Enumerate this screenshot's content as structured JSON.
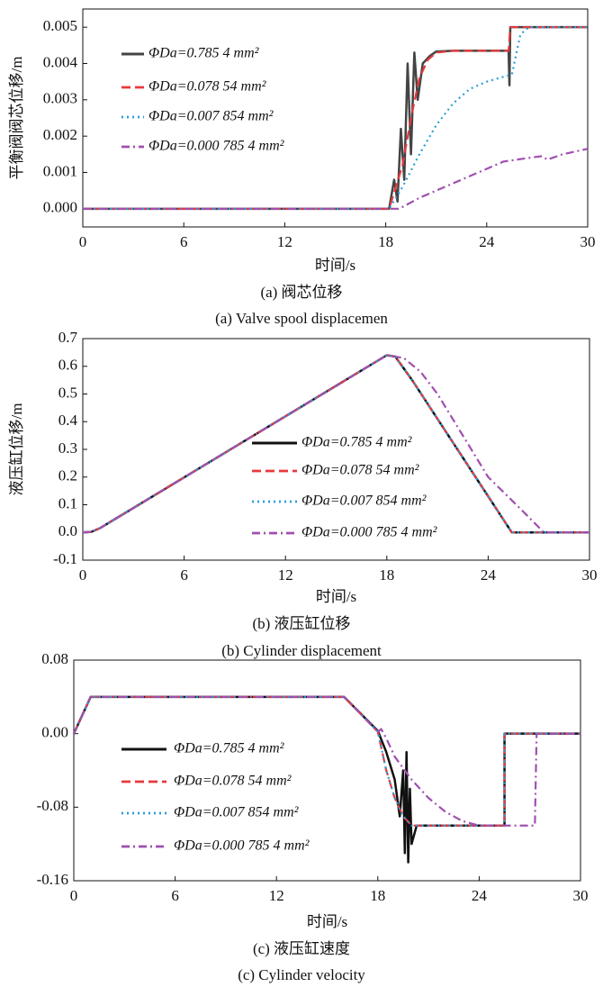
{
  "chart_data": [
    {
      "type": "line",
      "ylabel": "平衡阀阀芯位移/m",
      "xlabel": "时间/s",
      "caption_cn": "(a)  阀芯位移",
      "caption_en": "(a)  Valve spool displacemen",
      "xlim": [
        0,
        30
      ],
      "ylim": [
        -0.0005,
        0.0055
      ],
      "xticks": [
        0,
        6,
        12,
        18,
        24,
        30
      ],
      "yticks": [
        {
          "value": 0,
          "label": "0.000"
        },
        0.001,
        0.002,
        0.003,
        0.004,
        0.005
      ],
      "series": [
        {
          "name": "ΦDa=0.785 4 mm²",
          "color": "#444444",
          "style": "solid",
          "x": [
            0,
            18.2,
            18.5,
            18.7,
            18.9,
            19.1,
            19.3,
            19.5,
            19.7,
            19.9,
            20.2,
            20.6,
            21,
            22,
            25.3,
            25.35,
            25.4,
            25.45,
            30
          ],
          "values": [
            0,
            0,
            0.0008,
            0.0002,
            0.0022,
            0.0008,
            0.004,
            0.0015,
            0.0043,
            0.003,
            0.004,
            0.0042,
            0.00433,
            0.00435,
            0.00435,
            0.0034,
            0.005,
            0.005,
            0.005
          ]
        },
        {
          "name": "ΦDa=0.078 54 mm²",
          "color": "#e8383d",
          "style": "dashed",
          "x": [
            0,
            18.2,
            19,
            19.5,
            20,
            20.5,
            21,
            22,
            25.3,
            25.4,
            30
          ],
          "values": [
            0,
            0,
            0.0012,
            0.0025,
            0.0036,
            0.0041,
            0.0043,
            0.00435,
            0.00435,
            0.005,
            0.005
          ]
        },
        {
          "name": "ΦDa=0.007 854 mm²",
          "color": "#2a9fd8",
          "style": "dotted",
          "x": [
            0,
            18.2,
            19,
            20,
            21,
            22,
            23,
            24,
            25.5,
            26,
            26.5,
            30
          ],
          "values": [
            0,
            0,
            0.0006,
            0.0015,
            0.0023,
            0.0029,
            0.0033,
            0.0035,
            0.0037,
            0.0048,
            0.005,
            0.005
          ]
        },
        {
          "name": "ΦDa=0.000 785 4 mm²",
          "color": "#a050b0",
          "style": "dashdot",
          "x": [
            0,
            18.8,
            20,
            22,
            24,
            25,
            26.5,
            27.3,
            27.6,
            28.5,
            30
          ],
          "values": [
            0,
            0,
            0.0003,
            0.0007,
            0.0011,
            0.0013,
            0.0014,
            0.00145,
            0.00135,
            0.0015,
            0.00165
          ]
        }
      ]
    },
    {
      "type": "line",
      "ylabel": "液压缸位移/m",
      "xlabel": "时间/s",
      "caption_cn": "(b)  液压缸位移",
      "caption_en": "(b)  Cylinder displacement",
      "xlim": [
        0,
        30
      ],
      "ylim": [
        -0.1,
        0.7
      ],
      "xticks": [
        0,
        6,
        12,
        18,
        24,
        30
      ],
      "yticks": [
        -0.1,
        {
          "value": 0,
          "label": "0.0"
        },
        0.1,
        0.2,
        0.3,
        0.4,
        0.5,
        0.6,
        0.7
      ],
      "series": [
        {
          "name": "ΦDa=0.785 4 mm²",
          "color": "#111111",
          "style": "solid",
          "x": [
            0,
            0.5,
            1,
            18,
            18.5,
            19.5,
            25.4,
            30
          ],
          "values": [
            0,
            0.002,
            0.015,
            0.64,
            0.635,
            0.55,
            0,
            0
          ]
        },
        {
          "name": "ΦDa=0.078 54 mm²",
          "color": "#e8383d",
          "style": "dashed",
          "x": [
            0,
            0.5,
            1,
            18,
            18.5,
            19.5,
            25.4,
            30
          ],
          "values": [
            0,
            0.002,
            0.015,
            0.64,
            0.635,
            0.55,
            0,
            0
          ]
        },
        {
          "name": "ΦDa=0.007 854 mm²",
          "color": "#2a9fd8",
          "style": "dotted",
          "x": [
            0,
            0.5,
            1,
            18,
            18.5,
            19.5,
            25.4,
            30
          ],
          "values": [
            0,
            0.002,
            0.015,
            0.64,
            0.635,
            0.55,
            0,
            0
          ]
        },
        {
          "name": "ΦDa=0.000 785 4 mm²",
          "color": "#a050b0",
          "style": "dashdot",
          "x": [
            0,
            0.5,
            1,
            18,
            19,
            20,
            21,
            22.5,
            24,
            26,
            27.3,
            30
          ],
          "values": [
            0,
            0.002,
            0.015,
            0.64,
            0.63,
            0.58,
            0.5,
            0.35,
            0.2,
            0.08,
            0,
            0
          ]
        }
      ]
    },
    {
      "type": "line",
      "ylabel": "液压缸速度(m·s⁻¹)",
      "xlabel": "时间/s",
      "caption_cn": "(c)  液压缸速度",
      "caption_en": "(c)  Cylinder velocity",
      "xlim": [
        0,
        30
      ],
      "ylim": [
        -0.16,
        0.08
      ],
      "xticks": [
        0,
        6,
        12,
        18,
        24,
        30
      ],
      "yticks": [
        -0.16,
        -0.08,
        {
          "value": 0,
          "label": "0.00"
        },
        0.08
      ],
      "series": [
        {
          "name": "ΦDa=0.785 4 mm²",
          "color": "#111111",
          "style": "solid",
          "x": [
            0,
            1,
            16,
            18,
            18.5,
            19,
            19.3,
            19.5,
            19.6,
            19.7,
            19.8,
            19.9,
            20,
            20.3,
            25.5,
            25.5,
            30
          ],
          "values": [
            0,
            0.04,
            0.04,
            0.003,
            -0.02,
            -0.05,
            -0.09,
            -0.04,
            -0.13,
            -0.02,
            -0.14,
            -0.06,
            -0.12,
            -0.1,
            -0.1,
            0,
            0
          ]
        },
        {
          "name": "ΦDa=0.078 54 mm²",
          "color": "#e8383d",
          "style": "dashed",
          "x": [
            0,
            1,
            16,
            18,
            18.5,
            19,
            19.5,
            20,
            25.5,
            25.5,
            30
          ],
          "values": [
            0,
            0.04,
            0.04,
            0.002,
            -0.04,
            -0.07,
            -0.09,
            -0.1,
            -0.1,
            0,
            0
          ]
        },
        {
          "name": "ΦDa=0.007 854 mm²",
          "color": "#2a9fd8",
          "style": "dotted",
          "x": [
            0,
            1,
            16,
            18,
            18.5,
            19,
            19.5,
            20,
            25.5,
            25.5,
            30
          ],
          "values": [
            0,
            0.04,
            0.04,
            0.002,
            -0.04,
            -0.07,
            -0.09,
            -0.1,
            -0.1,
            0,
            0
          ]
        },
        {
          "name": "ΦDa=0.000 785 4 mm²",
          "color": "#a050b0",
          "style": "dashdot",
          "x": [
            0,
            1,
            16,
            18,
            18.2,
            18.5,
            19,
            20,
            21,
            22,
            23,
            24,
            27.3,
            27.4,
            30
          ],
          "values": [
            0,
            0.04,
            0.04,
            0.002,
            0.005,
            -0.005,
            -0.025,
            -0.05,
            -0.07,
            -0.085,
            -0.095,
            -0.1,
            -0.1,
            0,
            0
          ]
        }
      ]
    }
  ]
}
